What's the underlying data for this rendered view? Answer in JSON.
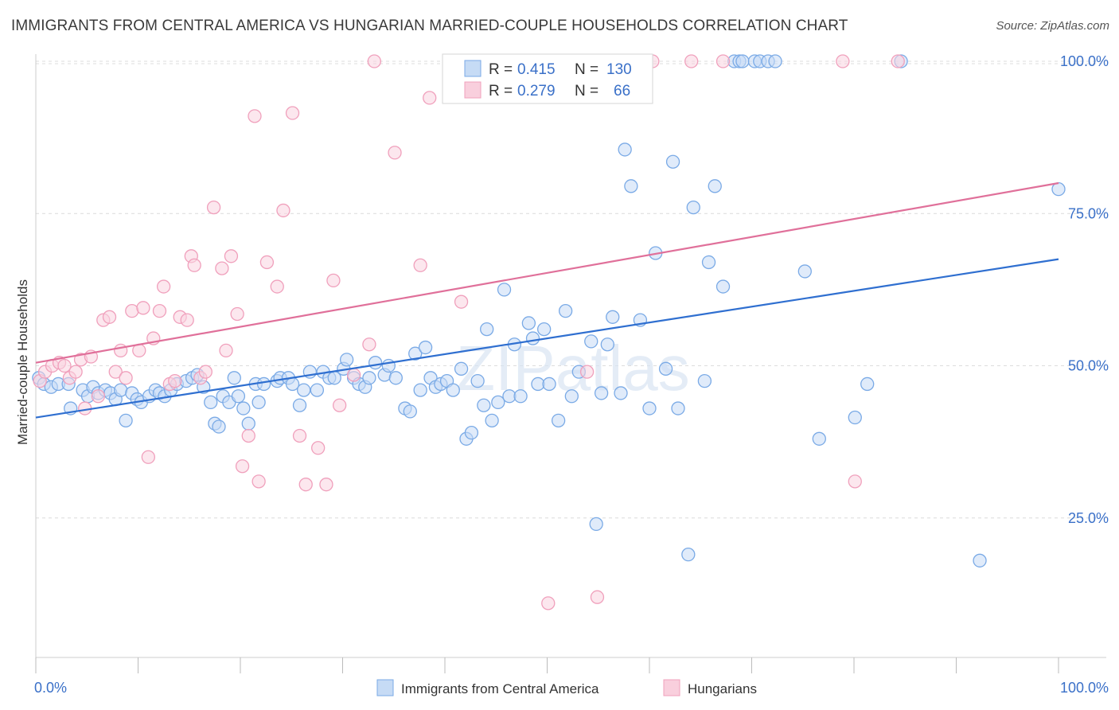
{
  "title": "IMMIGRANTS FROM CENTRAL AMERICA VS HUNGARIAN MARRIED-COUPLE HOUSEHOLDS CORRELATION CHART",
  "source": "Source: ZipAtlas.com",
  "watermark": "ZIPatlas",
  "colors": {
    "blue": "#7aaae6",
    "blue_line": "#2f6fd0",
    "pink": "#f0a0bc",
    "pink_line": "#e0709a",
    "axis_label": "#3a70c8"
  },
  "stats": [
    {
      "r_label": "R =",
      "r": "0.415",
      "n_label": "N =",
      "n": "130"
    },
    {
      "r_label": "R =",
      "r": "0.279",
      "n_label": "N =",
      "n": "66"
    }
  ],
  "chart_data": {
    "type": "scatter",
    "xlabel": "",
    "ylabel": "Married-couple Households",
    "xlim": [
      0,
      100
    ],
    "ylim": [
      0,
      104
    ],
    "x_tick_labels": [
      "0.0%",
      "100.0%"
    ],
    "y_tick_labels": [
      "25.0%",
      "50.0%",
      "75.0%",
      "100.0%"
    ],
    "y_ticks": [
      25,
      50,
      75,
      100
    ],
    "legend_position": "bottom",
    "series": [
      {
        "name": "Immigrants from Central America",
        "trend": {
          "x": [
            0,
            100
          ],
          "y": [
            41.5,
            67.5
          ]
        },
        "points": [
          [
            0.3,
            48
          ],
          [
            0.8,
            47
          ],
          [
            1.5,
            46.5
          ],
          [
            2.2,
            47
          ],
          [
            3.4,
            43
          ],
          [
            3.2,
            47
          ],
          [
            4.6,
            46
          ],
          [
            5.1,
            45
          ],
          [
            5.6,
            46.5
          ],
          [
            6.1,
            45.5
          ],
          [
            6.8,
            46
          ],
          [
            7.3,
            45.5
          ],
          [
            7.8,
            44.5
          ],
          [
            8.3,
            46
          ],
          [
            8.8,
            41
          ],
          [
            9.4,
            45.5
          ],
          [
            9.9,
            44.5
          ],
          [
            10.3,
            44
          ],
          [
            11.1,
            45
          ],
          [
            11.7,
            46
          ],
          [
            12.1,
            45.5
          ],
          [
            12.6,
            45
          ],
          [
            13.2,
            46
          ],
          [
            13.8,
            47
          ],
          [
            14.7,
            47.5
          ],
          [
            15.3,
            48
          ],
          [
            15.8,
            48.5
          ],
          [
            16.4,
            46.5
          ],
          [
            17.1,
            44
          ],
          [
            17.5,
            40.5
          ],
          [
            17.9,
            40
          ],
          [
            18.3,
            45
          ],
          [
            18.9,
            44
          ],
          [
            19.4,
            48
          ],
          [
            19.8,
            45
          ],
          [
            20.3,
            43
          ],
          [
            20.8,
            40.5
          ],
          [
            21.5,
            47
          ],
          [
            21.8,
            44
          ],
          [
            22.3,
            47
          ],
          [
            23.6,
            47.5
          ],
          [
            23.9,
            48
          ],
          [
            24.7,
            48
          ],
          [
            25.1,
            47
          ],
          [
            25.8,
            43.5
          ],
          [
            26.2,
            46
          ],
          [
            26.8,
            49
          ],
          [
            27.5,
            46
          ],
          [
            28.1,
            49
          ],
          [
            28.7,
            48
          ],
          [
            29.2,
            48
          ],
          [
            30.1,
            49.5
          ],
          [
            30.4,
            51
          ],
          [
            31.1,
            48
          ],
          [
            31.6,
            47
          ],
          [
            32.2,
            46.5
          ],
          [
            32.6,
            48
          ],
          [
            33.2,
            50.5
          ],
          [
            34.1,
            48.5
          ],
          [
            34.5,
            50
          ],
          [
            35.2,
            48
          ],
          [
            36.1,
            43
          ],
          [
            36.6,
            42.5
          ],
          [
            37.1,
            52
          ],
          [
            37.6,
            46
          ],
          [
            38.1,
            53
          ],
          [
            38.6,
            48
          ],
          [
            39.1,
            46.5
          ],
          [
            39.6,
            47
          ],
          [
            40.2,
            47.5
          ],
          [
            40.8,
            46
          ],
          [
            41.6,
            49.5
          ],
          [
            42.1,
            38
          ],
          [
            42.6,
            39
          ],
          [
            43.2,
            47.5
          ],
          [
            43.8,
            43.5
          ],
          [
            44.1,
            56
          ],
          [
            44.6,
            41
          ],
          [
            45.2,
            44
          ],
          [
            45.8,
            62.5
          ],
          [
            46.3,
            45
          ],
          [
            46.8,
            53.5
          ],
          [
            47.4,
            45
          ],
          [
            48.2,
            57
          ],
          [
            48.6,
            54.5
          ],
          [
            49.1,
            47
          ],
          [
            49.7,
            56
          ],
          [
            50.2,
            47
          ],
          [
            51.1,
            41
          ],
          [
            51.8,
            59
          ],
          [
            52.4,
            45
          ],
          [
            53.1,
            49
          ],
          [
            54.3,
            54
          ],
          [
            54.8,
            24
          ],
          [
            55.3,
            45.5
          ],
          [
            55.9,
            53.5
          ],
          [
            56.4,
            58
          ],
          [
            57.2,
            45.5
          ],
          [
            57.6,
            85.5
          ],
          [
            58.2,
            79.5
          ],
          [
            59.1,
            57.5
          ],
          [
            60.0,
            43
          ],
          [
            60.6,
            68.5
          ],
          [
            61.6,
            49.5
          ],
          [
            62.3,
            83.5
          ],
          [
            62.8,
            43
          ],
          [
            63.8,
            19
          ],
          [
            64.3,
            76
          ],
          [
            65.4,
            47.5
          ],
          [
            65.8,
            67
          ],
          [
            66.4,
            79.5
          ],
          [
            67.2,
            63
          ],
          [
            68.3,
            100
          ],
          [
            68.8,
            100
          ],
          [
            69.1,
            100
          ],
          [
            70.3,
            100
          ],
          [
            70.8,
            100
          ],
          [
            71.6,
            100
          ],
          [
            72.3,
            100
          ],
          [
            75.2,
            65.5
          ],
          [
            76.6,
            38
          ],
          [
            80.1,
            41.5
          ],
          [
            81.3,
            47
          ],
          [
            84.6,
            100
          ],
          [
            92.3,
            18
          ],
          [
            100,
            79
          ]
        ]
      },
      {
        "name": "Hungarians",
        "trend": {
          "x": [
            0,
            100
          ],
          "y": [
            50.5,
            80
          ]
        },
        "points": [
          [
            0.4,
            47.5
          ],
          [
            0.9,
            49
          ],
          [
            1.6,
            50
          ],
          [
            2.3,
            50.5
          ],
          [
            2.8,
            50
          ],
          [
            3.3,
            48
          ],
          [
            3.9,
            49
          ],
          [
            4.4,
            51
          ],
          [
            4.8,
            43
          ],
          [
            5.4,
            51.5
          ],
          [
            6.1,
            45
          ],
          [
            6.6,
            57.5
          ],
          [
            7.2,
            58
          ],
          [
            7.8,
            49
          ],
          [
            8.3,
            52.5
          ],
          [
            8.8,
            48
          ],
          [
            9.4,
            59
          ],
          [
            10.1,
            52.5
          ],
          [
            10.5,
            59.5
          ],
          [
            11.0,
            35
          ],
          [
            11.5,
            54.5
          ],
          [
            12.1,
            59
          ],
          [
            12.5,
            63
          ],
          [
            13.1,
            47
          ],
          [
            13.6,
            47.5
          ],
          [
            14.1,
            58
          ],
          [
            14.8,
            57.5
          ],
          [
            15.2,
            68
          ],
          [
            15.5,
            66.5
          ],
          [
            16.1,
            48
          ],
          [
            16.6,
            49
          ],
          [
            17.4,
            76
          ],
          [
            18.2,
            66
          ],
          [
            18.6,
            52.5
          ],
          [
            19.1,
            68
          ],
          [
            19.7,
            58.5
          ],
          [
            20.2,
            33.5
          ],
          [
            20.8,
            38.5
          ],
          [
            21.4,
            91
          ],
          [
            21.8,
            31
          ],
          [
            22.6,
            67
          ],
          [
            23.6,
            63
          ],
          [
            24.2,
            75.5
          ],
          [
            25.1,
            91.5
          ],
          [
            25.8,
            38.5
          ],
          [
            26.4,
            30.5
          ],
          [
            27.6,
            36.5
          ],
          [
            28.4,
            30.5
          ],
          [
            29.1,
            64
          ],
          [
            29.7,
            43.5
          ],
          [
            31.1,
            48.5
          ],
          [
            32.6,
            53.5
          ],
          [
            33.1,
            100
          ],
          [
            35.1,
            85
          ],
          [
            37.6,
            66.5
          ],
          [
            38.5,
            94
          ],
          [
            41.2,
            96
          ],
          [
            41.6,
            60.5
          ],
          [
            50.1,
            11
          ],
          [
            53.9,
            49
          ],
          [
            54.9,
            12
          ],
          [
            58.5,
            100
          ],
          [
            60.3,
            100
          ],
          [
            64.1,
            100
          ],
          [
            67.2,
            100
          ],
          [
            78.9,
            100
          ],
          [
            80.1,
            31
          ],
          [
            84.3,
            100
          ]
        ]
      }
    ]
  }
}
